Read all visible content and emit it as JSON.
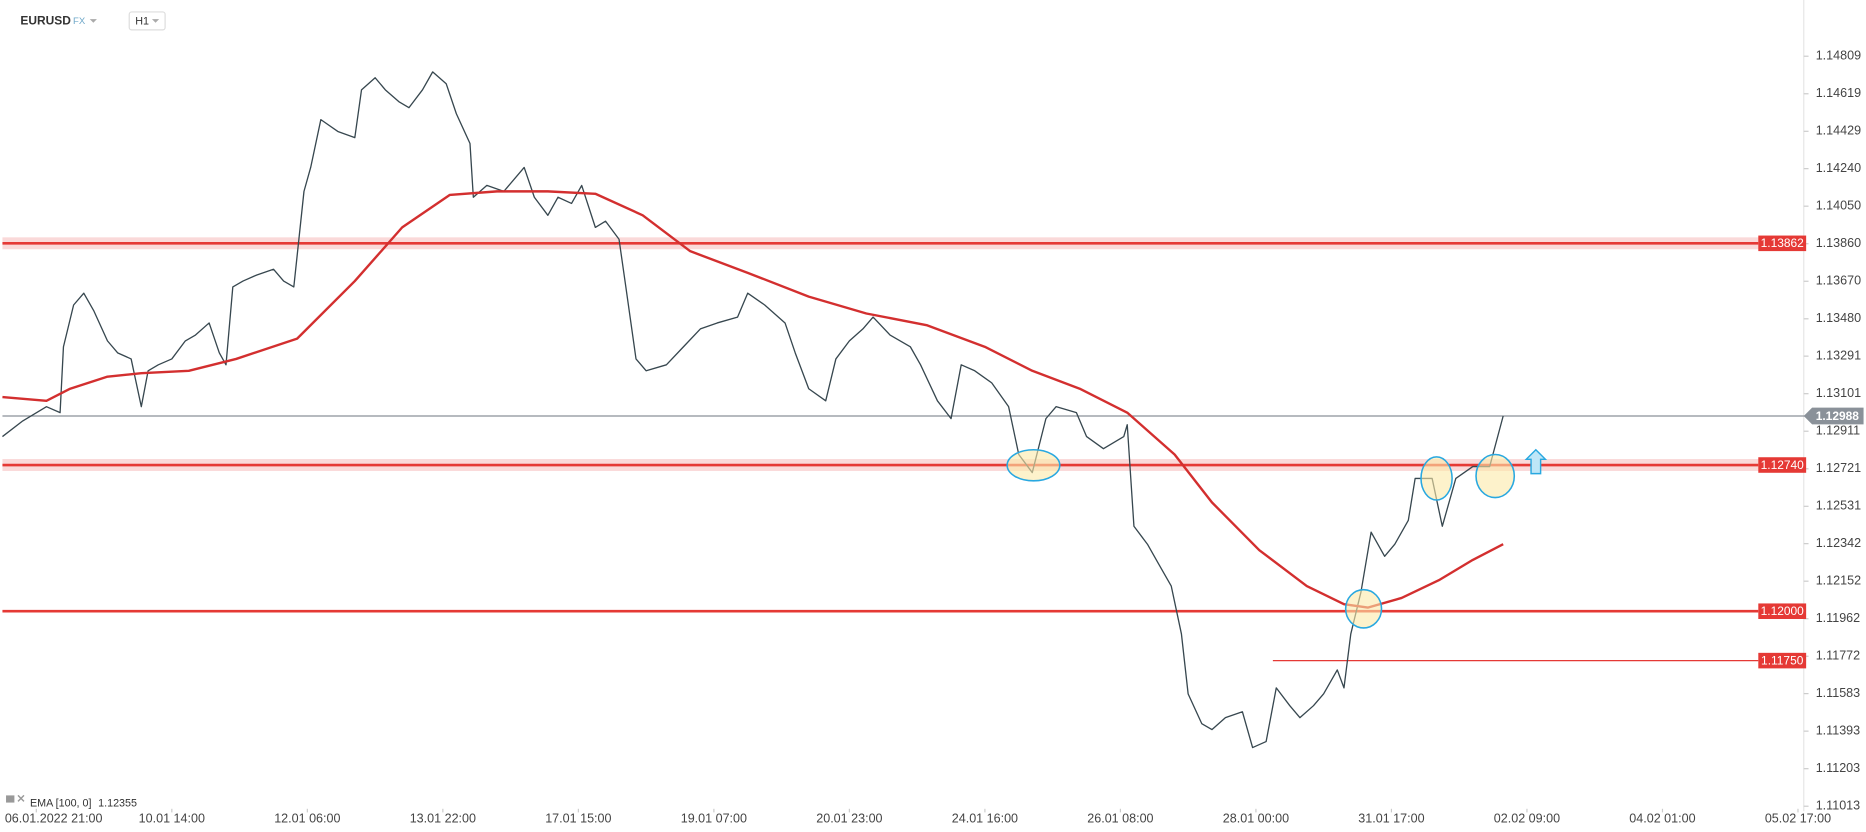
{
  "header": {
    "market": "FX",
    "timeframe": "H1"
  },
  "chart_data": {
    "type": "line",
    "xlim": [
      -10,
      521
    ],
    "ylim": [
      1.11,
      1.1503
    ],
    "xticks": [
      {
        "value": 0,
        "label": "06.01.2022  21:00"
      },
      {
        "value": 40,
        "label": "10.01  14:00"
      },
      {
        "value": 80,
        "label": "12.01  06:00"
      },
      {
        "value": 120,
        "label": "13.01  22:00"
      },
      {
        "value": 160,
        "label": "17.01  15:00"
      },
      {
        "value": 200,
        "label": "19.01  07:00"
      },
      {
        "value": 240,
        "label": "20.01  23:00"
      },
      {
        "value": 280,
        "label": "24.01  16:00"
      },
      {
        "value": 320,
        "label": "26.01  08:00"
      },
      {
        "value": 360,
        "label": "28.01  00:00"
      },
      {
        "value": 400,
        "label": "31.01  17:00"
      },
      {
        "value": 440,
        "label": "02.02  09:00"
      },
      {
        "value": 480,
        "label": "04.02  01:00"
      },
      {
        "value": 520,
        "label": "05.02  17:00"
      }
    ],
    "yticks": [
      1.14809,
      1.14619,
      1.14429,
      {
        "value": 1.1424,
        "label": "1.14240"
      },
      {
        "value": 1.1405,
        "label": "1.14050"
      },
      {
        "value": 1.1386,
        "label": "1.13860"
      },
      {
        "value": 1.1367,
        "label": "1.13670"
      },
      {
        "value": 1.1348,
        "label": "1.13480"
      },
      1.13291,
      1.13101,
      1.12911,
      1.12721,
      1.12531,
      1.12342,
      1.12152,
      1.11962,
      1.11772,
      1.11583,
      1.11393,
      1.11203,
      1.11013
    ],
    "series": [
      {
        "name": "EURUSD",
        "color": "#37474f",
        "x": [
          -10,
          -4,
          3,
          7,
          8,
          11,
          14,
          17,
          21,
          24,
          28,
          31,
          33,
          36,
          40,
          44,
          47,
          51,
          54,
          56,
          58,
          61,
          65,
          70,
          73,
          76,
          79,
          81,
          84,
          89,
          94,
          96,
          100,
          103,
          107,
          110,
          114,
          117,
          121,
          124,
          128,
          129,
          133,
          138,
          144,
          147,
          151,
          154,
          158,
          161,
          165,
          168,
          172,
          174,
          177,
          180,
          186,
          191,
          196,
          201,
          207,
          210,
          215,
          221,
          224,
          228,
          233,
          236,
          240,
          244,
          247,
          252,
          258,
          261,
          266,
          270,
          273,
          277,
          282,
          287,
          290,
          294,
          298,
          301,
          307,
          310,
          315,
          321,
          322,
          324,
          328,
          331,
          335,
          338,
          340,
          344,
          347,
          351,
          356,
          359,
          363,
          366,
          370,
          373,
          377,
          380,
          384,
          386,
          388,
          391,
          394,
          398,
          401,
          405,
          407,
          412,
          415,
          419,
          424,
          429,
          433
        ],
        "values": [
          1.12884,
          1.12963,
          1.13035,
          1.13005,
          1.13338,
          1.1355,
          1.1361,
          1.13519,
          1.13368,
          1.13308,
          1.13277,
          1.13035,
          1.13217,
          1.13247,
          1.13277,
          1.13368,
          1.13398,
          1.13459,
          1.13308,
          1.13247,
          1.13641,
          1.13671,
          1.13701,
          1.13731,
          1.13671,
          1.13641,
          1.14125,
          1.14246,
          1.14488,
          1.14428,
          1.14397,
          1.14639,
          1.147,
          1.14639,
          1.14579,
          1.14549,
          1.14639,
          1.1473,
          1.1467,
          1.14518,
          1.14367,
          1.14095,
          1.14155,
          1.14125,
          1.14246,
          1.14095,
          1.14004,
          1.14095,
          1.14064,
          1.14155,
          1.13943,
          1.13974,
          1.13883,
          1.13641,
          1.13277,
          1.13217,
          1.13247,
          1.13338,
          1.13429,
          1.13459,
          1.13489,
          1.1361,
          1.1355,
          1.13459,
          1.13308,
          1.13126,
          1.13065,
          1.13277,
          1.13368,
          1.13429,
          1.13489,
          1.13398,
          1.13338,
          1.13247,
          1.13065,
          1.12975,
          1.13247,
          1.13217,
          1.13156,
          1.13035,
          1.12793,
          1.12702,
          1.12975,
          1.13035,
          1.13005,
          1.12884,
          1.12823,
          1.12884,
          1.12944,
          1.1243,
          1.12339,
          1.12248,
          1.12127,
          1.11885,
          1.11582,
          1.11431,
          1.11401,
          1.11461,
          1.11491,
          1.1131,
          1.1134,
          1.11612,
          1.11522,
          1.11461,
          1.11522,
          1.11582,
          1.11703,
          1.11612,
          1.11885,
          1.12097,
          1.124,
          1.12278,
          1.12339,
          1.1246,
          1.12672,
          1.12672,
          1.1243,
          1.12672,
          1.12732,
          1.12732,
          1.12988
        ]
      },
      {
        "name": "EMA [100, 0]",
        "color": "#d32f2f",
        "last_value": 1.12355,
        "x": [
          -10,
          3,
          10,
          21,
          31,
          45,
          59,
          77,
          94,
          108,
          122,
          136,
          151,
          165,
          179,
          193,
          210,
          228,
          245,
          263,
          280,
          294,
          308,
          322,
          336,
          347,
          361,
          375,
          386,
          393,
          403,
          414,
          424,
          433
        ],
        "values": [
          1.13084,
          1.13065,
          1.13126,
          1.13187,
          1.13205,
          1.13217,
          1.13277,
          1.1338,
          1.13671,
          1.13943,
          1.14107,
          1.14125,
          1.14125,
          1.14113,
          1.14004,
          1.13822,
          1.13713,
          1.13592,
          1.13507,
          1.13447,
          1.13338,
          1.13217,
          1.13126,
          1.13005,
          1.12793,
          1.12551,
          1.12309,
          1.12127,
          1.12036,
          1.12018,
          1.12067,
          1.12157,
          1.1226,
          1.12339
        ]
      }
    ],
    "levels": [
      {
        "value": 1.13862,
        "band": true
      },
      {
        "value": 1.1274,
        "label": "1.12740",
        "band": true
      },
      {
        "value": 1.12,
        "label": "1.12000"
      },
      {
        "value": 1.1175,
        "label": "1.11750",
        "x_from": 365,
        "thin": true
      }
    ],
    "level_color": "#e53935",
    "current_price": 1.12988,
    "current_color": "#8a9199"
  }
}
